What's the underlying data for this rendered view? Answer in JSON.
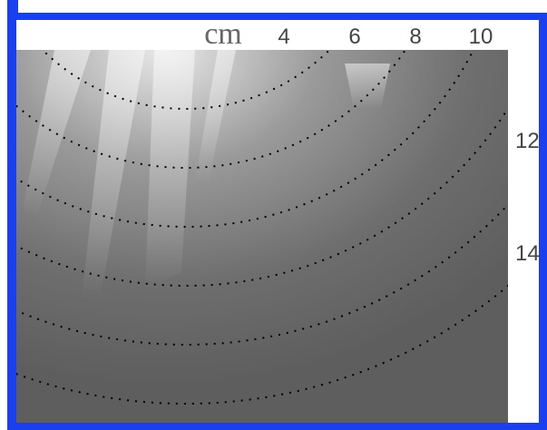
{
  "scale": {
    "unit": "cm",
    "top_labels": [
      "4",
      "6",
      "8",
      "10"
    ],
    "side_labels": [
      "12",
      "14"
    ]
  }
}
